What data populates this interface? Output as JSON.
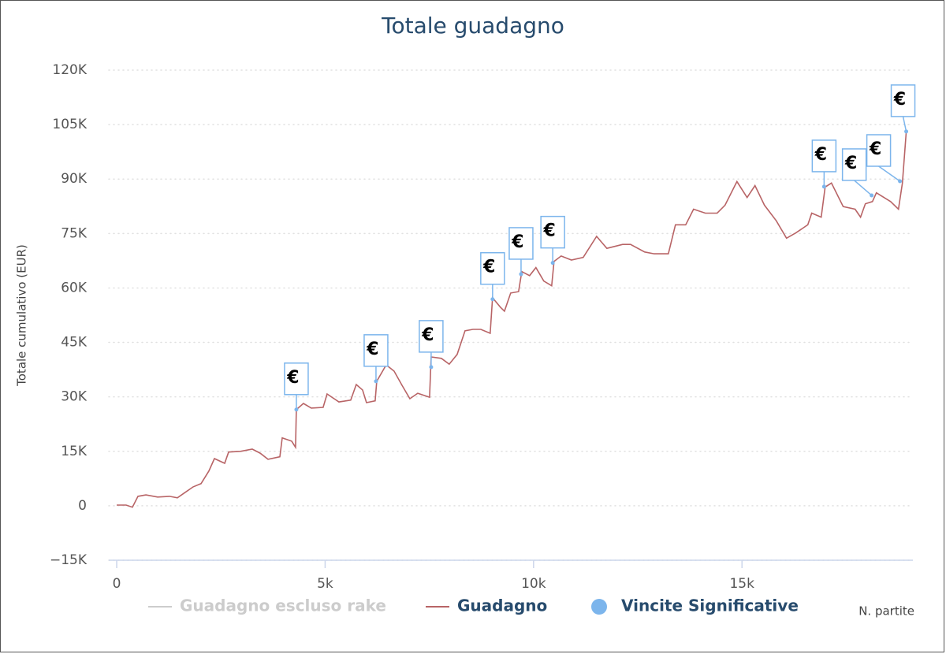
{
  "chart_data": {
    "type": "line",
    "title": "Totale guadagno",
    "y_axis_label": "Totale cumulativo (EUR)",
    "x_axis_label": "N. partite",
    "xlim": [
      -190,
      19100
    ],
    "ylim": [
      -15000,
      120000
    ],
    "xticks": [
      0,
      {
        "value": 5000,
        "label": "5k"
      },
      {
        "value": 10000,
        "label": "10k"
      },
      {
        "value": 15000,
        "label": "15k"
      }
    ],
    "yticks": [
      {
        "value": -15000,
        "label": "−15K"
      },
      0,
      {
        "value": 15000,
        "label": "15K"
      },
      {
        "value": 30000,
        "label": "30K"
      },
      {
        "value": 45000,
        "label": "45K"
      },
      {
        "value": 60000,
        "label": "60K"
      },
      {
        "value": 75000,
        "label": "75K"
      },
      {
        "value": 90000,
        "label": "90K"
      },
      {
        "value": 105000,
        "label": "105K"
      },
      {
        "value": 120000,
        "label": "120K"
      }
    ],
    "grid": true,
    "flag_label": "€",
    "series": [
      {
        "name": "Guadagno escluso rake",
        "type": "line",
        "color": "#cccccc",
        "visible": false,
        "x": [],
        "values": []
      },
      {
        "name": "Guadagno",
        "type": "line",
        "color": "#b86466",
        "visible": true,
        "x": [
          0,
          227,
          378,
          510,
          700,
          983,
          1267,
          1456,
          1645,
          1834,
          2023,
          2212,
          2344,
          2590,
          2684,
          2968,
          3252,
          3441,
          3630,
          3913,
          3970,
          4197,
          4291,
          4310,
          4480,
          4669,
          4953,
          5047,
          5331,
          5614,
          5747,
          5898,
          5993,
          6201,
          6238,
          6465,
          6654,
          6843,
          7032,
          7221,
          7505,
          7543,
          7788,
          7977,
          8167,
          8356,
          8545,
          8734,
          8960,
          9017,
          9206,
          9301,
          9452,
          9641,
          9717,
          9906,
          10057,
          10246,
          10435,
          10492,
          10662,
          10908,
          11191,
          11512,
          11758,
          12136,
          12325,
          12666,
          12893,
          13233,
          13403,
          13649,
          13838,
          14121,
          14405,
          14594,
          14878,
          15123,
          15312,
          15539,
          15823,
          16068,
          16295,
          16579,
          16673,
          16900,
          16995,
          17146,
          17429,
          17713,
          17845,
          17959,
          18129,
          18224,
          18564,
          18753,
          18848,
          18942
        ],
        "values": [
          200,
          200,
          -400,
          2600,
          3000,
          2400,
          2600,
          2200,
          3700,
          5200,
          6100,
          9600,
          13000,
          11700,
          14800,
          15000,
          15600,
          14500,
          12800,
          13500,
          18700,
          17800,
          16100,
          26500,
          28200,
          26900,
          27100,
          30800,
          28600,
          29100,
          33400,
          31900,
          28400,
          28900,
          34300,
          38800,
          37100,
          33200,
          29500,
          31000,
          29900,
          41000,
          40600,
          39000,
          41700,
          48200,
          48600,
          48600,
          47500,
          57300,
          54700,
          53600,
          58600,
          59000,
          64500,
          63400,
          65600,
          61900,
          60600,
          67300,
          68800,
          67700,
          68400,
          74200,
          70900,
          72000,
          72000,
          69900,
          69400,
          69400,
          77400,
          77400,
          81700,
          80600,
          80600,
          82800,
          89300,
          84900,
          88200,
          82800,
          78500,
          73700,
          75200,
          77400,
          80600,
          79500,
          87800,
          88900,
          82400,
          81700,
          79500,
          83200,
          83800,
          86200,
          83800,
          81700,
          88900,
          103100
        ]
      },
      {
        "name": "Vincite Significative",
        "type": "scatter",
        "color": "#7cb5ec",
        "visible": true,
        "x": [
          4310,
          6220,
          7543,
          9017,
          9700,
          10460,
          16970,
          18110,
          18790,
          18940
        ],
        "values": [
          26500,
          34300,
          38200,
          56900,
          63800,
          66900,
          87900,
          85500,
          89400,
          103100
        ]
      }
    ]
  }
}
